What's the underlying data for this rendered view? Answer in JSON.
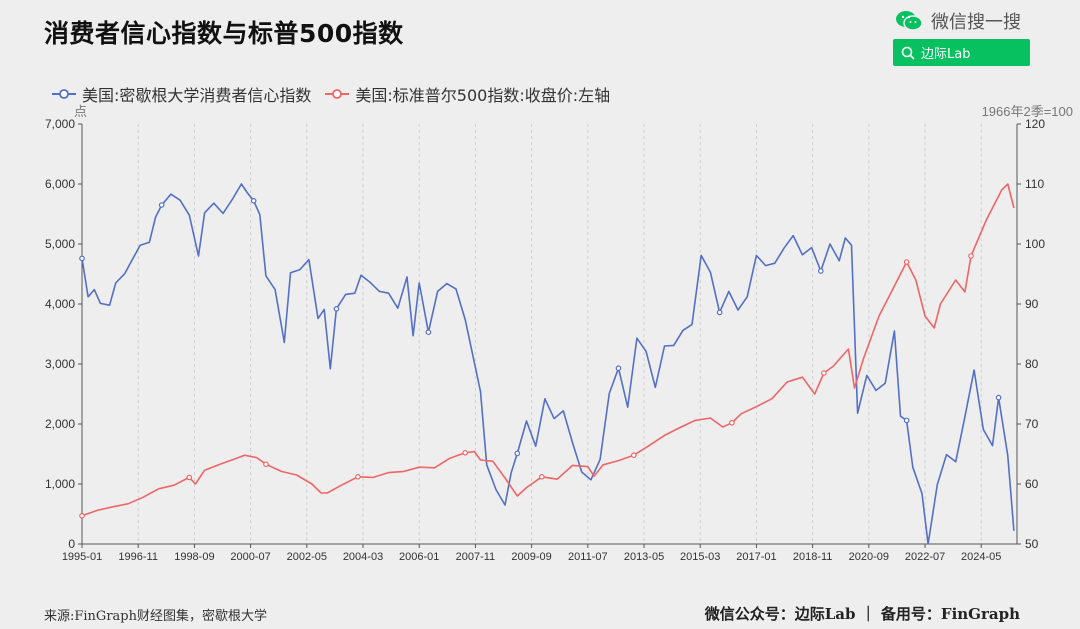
{
  "title": "消费者信心指数与标普500指数",
  "wechat": {
    "label": "微信搜一搜",
    "search_label": "边际Lab"
  },
  "footer": {
    "source": "来源:FinGraph财经图集，密歇根大学",
    "right": "微信公众号：边际Lab ｜ 备用号：FinGraph"
  },
  "colors": {
    "blue": "#5470c6",
    "red": "#ee6666",
    "wechat_green": "#07c160"
  },
  "icons": {
    "wechat": "wechat-icon",
    "search": "search-icon"
  },
  "chart_data": {
    "type": "line",
    "legend_position": "top-left",
    "grid": "vertical-dashed",
    "left_axis": {
      "unit": "点",
      "range": [
        0,
        7000
      ],
      "ticks": [
        "0",
        "1,000",
        "2,000",
        "3,000",
        "4,000",
        "5,000",
        "6,000",
        "7,000"
      ]
    },
    "right_axis": {
      "unit": "1966年2季=100",
      "range": [
        50,
        120
      ],
      "ticks": [
        "50",
        "60",
        "70",
        "80",
        "90",
        "100",
        "110",
        "120"
      ]
    },
    "x_range": [
      1995.0,
      2025.5
    ],
    "x_ticks": [
      "1995-01",
      "1996-11",
      "1998-09",
      "2000-07",
      "2002-05",
      "2004-03",
      "2006-01",
      "2007-11",
      "2009-09",
      "2011-07",
      "2013-05",
      "2015-03",
      "2017-01",
      "2018-11",
      "2020-09",
      "2022-07",
      "2024-05"
    ],
    "series": [
      {
        "name": "美国:密歇根大学消费者信心指数",
        "axis": "right",
        "color": "#5470c6",
        "x": [
          1995.0,
          1995.2,
          1995.4,
          1995.6,
          1995.9,
          1996.1,
          1996.4,
          1996.6,
          1996.9,
          1997.2,
          1997.4,
          1997.6,
          1997.9,
          1998.2,
          1998.5,
          1998.8,
          1999.0,
          1999.3,
          1999.6,
          1999.9,
          2000.2,
          2000.4,
          2000.6,
          2000.8,
          2001.0,
          2001.3,
          2001.6,
          2001.8,
          2002.1,
          2002.4,
          2002.7,
          2002.9,
          2003.1,
          2003.3,
          2003.6,
          2003.9,
          2004.1,
          2004.4,
          2004.7,
          2005.0,
          2005.3,
          2005.6,
          2005.8,
          2006.0,
          2006.3,
          2006.6,
          2006.9,
          2007.2,
          2007.5,
          2007.8,
          2008.0,
          2008.2,
          2008.5,
          2008.8,
          2009.0,
          2009.2,
          2009.5,
          2009.8,
          2010.1,
          2010.4,
          2010.7,
          2011.0,
          2011.3,
          2011.6,
          2011.9,
          2012.2,
          2012.5,
          2012.8,
          2013.1,
          2013.4,
          2013.7,
          2014.0,
          2014.3,
          2014.6,
          2014.9,
          2015.2,
          2015.5,
          2015.8,
          2016.1,
          2016.4,
          2016.7,
          2017.0,
          2017.3,
          2017.6,
          2017.9,
          2018.2,
          2018.5,
          2018.8,
          2019.1,
          2019.4,
          2019.7,
          2019.9,
          2020.1,
          2020.3,
          2020.6,
          2020.9,
          2021.2,
          2021.5,
          2021.7,
          2021.9,
          2022.1,
          2022.4,
          2022.6,
          2022.9,
          2023.2,
          2023.5,
          2023.8,
          2024.1,
          2024.4,
          2024.7,
          2024.9,
          2025.2,
          2025.4
        ],
        "values": [
          97.6,
          91.2,
          92.4,
          90.1,
          89.8,
          93.5,
          95.1,
          97.0,
          99.8,
          100.3,
          104.5,
          106.5,
          108.3,
          107.3,
          104.8,
          98.0,
          105.2,
          106.8,
          105.1,
          107.4,
          110.0,
          108.5,
          107.2,
          104.9,
          94.7,
          92.4,
          83.6,
          95.2,
          95.7,
          97.4,
          87.6,
          89.1,
          79.2,
          89.2,
          91.6,
          91.8,
          94.8,
          93.6,
          92.1,
          91.8,
          89.3,
          94.5,
          84.7,
          93.5,
          85.3,
          92.1,
          93.4,
          92.5,
          87.4,
          80.2,
          75.4,
          63.2,
          59.1,
          56.5,
          61.9,
          65.1,
          70.5,
          66.3,
          74.2,
          70.9,
          72.2,
          66.9,
          62.0,
          60.7,
          64.1,
          75.1,
          79.3,
          72.8,
          84.3,
          82.1,
          76.1,
          83.0,
          83.1,
          85.6,
          86.6,
          98.1,
          95.3,
          88.6,
          92.1,
          89.0,
          91.2,
          98.1,
          96.4,
          96.8,
          99.3,
          101.4,
          98.2,
          99.4,
          95.5,
          100.0,
          97.2,
          101.0,
          99.8,
          71.8,
          78.1,
          75.6,
          76.8,
          85.5,
          71.3,
          70.6,
          62.8,
          58.4,
          50.0,
          59.9,
          64.9,
          63.7,
          71.2,
          79.0,
          69.1,
          66.4,
          74.4,
          64.7,
          52.2
        ]
      },
      {
        "name": "美国:标准普尔500指数:收盘价:左轴",
        "axis": "left",
        "color": "#ee6666",
        "x": [
          1995.0,
          1995.5,
          1996.0,
          1996.5,
          1997.0,
          1997.5,
          1998.0,
          1998.5,
          1998.7,
          1999.0,
          1999.5,
          2000.0,
          2000.3,
          2000.7,
          2001.0,
          2001.5,
          2002.0,
          2002.5,
          2002.8,
          2003.0,
          2003.5,
          2004.0,
          2004.5,
          2005.0,
          2005.5,
          2006.0,
          2006.5,
          2007.0,
          2007.5,
          2007.8,
          2008.0,
          2008.4,
          2008.8,
          2009.2,
          2009.5,
          2010.0,
          2010.5,
          2011.0,
          2011.5,
          2011.7,
          2012.0,
          2012.5,
          2013.0,
          2013.5,
          2014.0,
          2014.5,
          2015.0,
          2015.5,
          2015.9,
          2016.2,
          2016.5,
          2017.0,
          2017.5,
          2018.0,
          2018.5,
          2018.9,
          2019.2,
          2019.5,
          2020.0,
          2020.2,
          2020.5,
          2021.0,
          2021.5,
          2021.9,
          2022.2,
          2022.5,
          2022.8,
          2023.0,
          2023.5,
          2023.8,
          2024.0,
          2024.5,
          2025.0,
          2025.2,
          2025.4
        ],
        "values": [
          470,
          560,
          620,
          670,
          780,
          920,
          980,
          1110,
          1000,
          1230,
          1330,
          1420,
          1480,
          1440,
          1330,
          1210,
          1150,
          1000,
          850,
          850,
          990,
          1120,
          1110,
          1190,
          1210,
          1280,
          1270,
          1430,
          1520,
          1540,
          1400,
          1380,
          1100,
          800,
          940,
          1120,
          1080,
          1310,
          1290,
          1130,
          1320,
          1390,
          1480,
          1640,
          1810,
          1940,
          2060,
          2100,
          1950,
          2020,
          2170,
          2290,
          2420,
          2700,
          2780,
          2500,
          2850,
          2960,
          3250,
          2600,
          3100,
          3800,
          4300,
          4700,
          4400,
          3800,
          3600,
          4000,
          4400,
          4200,
          4800,
          5400,
          5900,
          6000,
          5600
        ]
      }
    ]
  }
}
